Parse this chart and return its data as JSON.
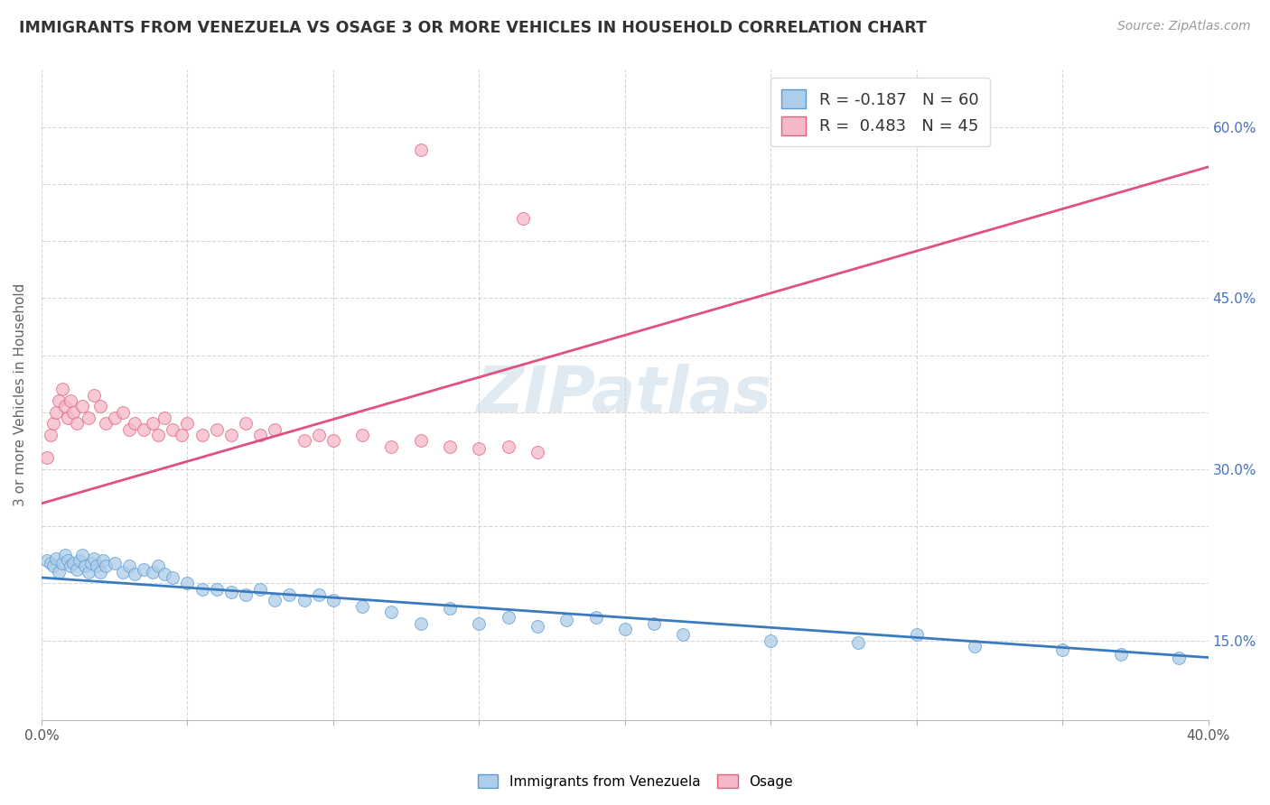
{
  "title": "IMMIGRANTS FROM VENEZUELA VS OSAGE 3 OR MORE VEHICLES IN HOUSEHOLD CORRELATION CHART",
  "source_text": "Source: ZipAtlas.com",
  "ylabel": "3 or more Vehicles in Household",
  "legend_blue_r": "R = -0.187",
  "legend_blue_n": "N = 60",
  "legend_pink_r": "R =  0.483",
  "legend_pink_n": "N = 45",
  "legend_blue_label": "Immigrants from Venezuela",
  "legend_pink_label": "Osage",
  "blue_color": "#aecde8",
  "pink_color": "#f4b8c8",
  "blue_line_color": "#3a7abf",
  "pink_line_color": "#e05080",
  "blue_edge_color": "#5b9bd5",
  "pink_edge_color": "#e06080",
  "watermark_color": "#c8daea",
  "blue_scatter_x": [
    0.002,
    0.003,
    0.004,
    0.005,
    0.006,
    0.007,
    0.008,
    0.009,
    0.01,
    0.011,
    0.012,
    0.013,
    0.014,
    0.015,
    0.016,
    0.017,
    0.018,
    0.019,
    0.02,
    0.021,
    0.022,
    0.025,
    0.028,
    0.03,
    0.032,
    0.035,
    0.038,
    0.04,
    0.042,
    0.045,
    0.05,
    0.055,
    0.06,
    0.065,
    0.07,
    0.075,
    0.08,
    0.085,
    0.09,
    0.095,
    0.1,
    0.11,
    0.12,
    0.13,
    0.14,
    0.15,
    0.16,
    0.17,
    0.18,
    0.19,
    0.2,
    0.21,
    0.22,
    0.25,
    0.28,
    0.3,
    0.32,
    0.35,
    0.37,
    0.39
  ],
  "blue_scatter_y": [
    0.22,
    0.218,
    0.215,
    0.222,
    0.21,
    0.218,
    0.225,
    0.22,
    0.215,
    0.218,
    0.212,
    0.22,
    0.225,
    0.215,
    0.21,
    0.218,
    0.222,
    0.215,
    0.21,
    0.22,
    0.215,
    0.218,
    0.21,
    0.215,
    0.208,
    0.212,
    0.21,
    0.215,
    0.208,
    0.205,
    0.2,
    0.195,
    0.195,
    0.192,
    0.19,
    0.195,
    0.185,
    0.19,
    0.185,
    0.19,
    0.185,
    0.18,
    0.175,
    0.165,
    0.178,
    0.165,
    0.17,
    0.162,
    0.168,
    0.17,
    0.16,
    0.165,
    0.155,
    0.15,
    0.148,
    0.155,
    0.145,
    0.142,
    0.138,
    0.135
  ],
  "pink_scatter_x": [
    0.002,
    0.003,
    0.004,
    0.005,
    0.006,
    0.007,
    0.008,
    0.009,
    0.01,
    0.011,
    0.012,
    0.014,
    0.016,
    0.018,
    0.02,
    0.022,
    0.025,
    0.028,
    0.03,
    0.032,
    0.035,
    0.038,
    0.04,
    0.042,
    0.045,
    0.048,
    0.05,
    0.055,
    0.06,
    0.065,
    0.07,
    0.075,
    0.08,
    0.09,
    0.095,
    0.1,
    0.11,
    0.12,
    0.13,
    0.14,
    0.15,
    0.16,
    0.17,
    0.13,
    0.165
  ],
  "pink_scatter_y": [
    0.31,
    0.33,
    0.34,
    0.35,
    0.36,
    0.37,
    0.355,
    0.345,
    0.36,
    0.35,
    0.34,
    0.355,
    0.345,
    0.365,
    0.355,
    0.34,
    0.345,
    0.35,
    0.335,
    0.34,
    0.335,
    0.34,
    0.33,
    0.345,
    0.335,
    0.33,
    0.34,
    0.33,
    0.335,
    0.33,
    0.34,
    0.33,
    0.335,
    0.325,
    0.33,
    0.325,
    0.33,
    0.32,
    0.325,
    0.32,
    0.318,
    0.32,
    0.315,
    0.58,
    0.52
  ],
  "xlim_min": 0.0,
  "xlim_max": 0.4,
  "ylim_min": 0.08,
  "ylim_max": 0.65,
  "right_ytick_vals": [
    0.15,
    0.3,
    0.45,
    0.6
  ],
  "right_ytick_labels": [
    "15.0%",
    "30.0%",
    "45.0%",
    "60.0%"
  ],
  "blue_line_x0": 0.0,
  "blue_line_y0": 0.205,
  "blue_line_x1": 0.4,
  "blue_line_y1": 0.135,
  "pink_line_x0": 0.0,
  "pink_line_y0": 0.27,
  "pink_line_x1": 0.4,
  "pink_line_y1": 0.565,
  "title_fontsize": 12.5,
  "source_fontsize": 10,
  "axis_label_fontsize": 11,
  "tick_label_fontsize": 11,
  "watermark_fontsize": 52,
  "watermark_alpha": 0.55,
  "right_tick_color": "#4472c4",
  "legend_r_n_color": "#4472c4"
}
